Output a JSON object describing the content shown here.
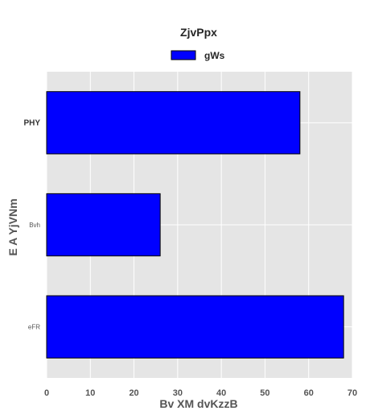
{
  "chart_data": {
    "type": "bar",
    "orientation": "horizontal",
    "title": "ZjvPpx",
    "xlabel": "Bv XM dvKzzB",
    "ylabel": "E A YjVNm",
    "categories": [
      "PHY",
      "Bvh",
      "eFR"
    ],
    "series": [
      {
        "name": "gWs",
        "values": [
          58,
          26,
          68
        ],
        "color": "#0000ff"
      }
    ],
    "xlim": [
      0,
      70
    ],
    "xticks": [
      0,
      10,
      20,
      30,
      40,
      50,
      60,
      70
    ],
    "grid": true,
    "legend_position": "top-center",
    "background_color": "#e5e5e5",
    "grid_color": "#ffffff"
  }
}
